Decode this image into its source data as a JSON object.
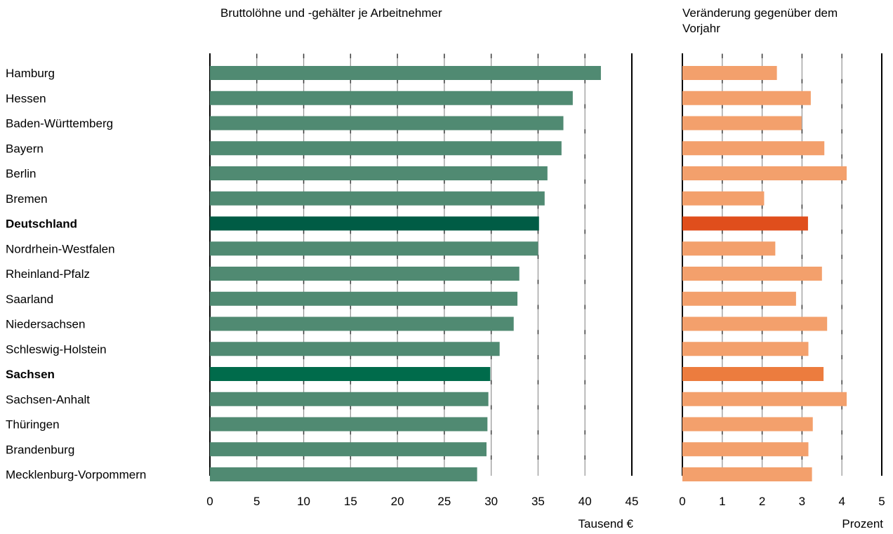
{
  "chart_data": [
    {
      "type": "bar",
      "orientation": "horizontal",
      "title": "Bruttolöhne und -gehälter je Arbeitnehmer",
      "unit_label": "Tausend €",
      "xlim": [
        0,
        45
      ],
      "ticks": [
        0,
        5,
        10,
        15,
        20,
        25,
        30,
        35,
        40,
        45
      ],
      "grid": true,
      "categories": [
        "Hamburg",
        "Hessen",
        "Baden-Württemberg",
        "Bayern",
        "Berlin",
        "Bremen",
        "Deutschland",
        "Nordrhein-Westfalen",
        "Rheinland-Pfalz",
        "Saarland",
        "Niedersachsen",
        "Schleswig-Holstein",
        "Sachsen",
        "Sachsen-Anhalt",
        "Thüringen",
        "Brandenburg",
        "Mecklenburg-Vorpommern"
      ],
      "values": [
        41.7,
        38.7,
        37.7,
        37.5,
        36.0,
        35.7,
        35.1,
        35.0,
        33.0,
        32.8,
        32.4,
        30.9,
        29.9,
        29.7,
        29.6,
        29.5,
        28.5
      ],
      "colors": {
        "default": "#508a72",
        "Deutschland": "#005c45",
        "Sachsen": "#006b4b"
      },
      "bold_categories": [
        "Deutschland",
        "Sachsen"
      ]
    },
    {
      "type": "bar",
      "orientation": "horizontal",
      "title": "Veränderung gegenüber dem Vorjahr",
      "unit_label": "Prozent",
      "xlim": [
        0,
        5
      ],
      "ticks": [
        0,
        1,
        2,
        3,
        4,
        5
      ],
      "grid": true,
      "categories": [
        "Hamburg",
        "Hessen",
        "Baden-Württemberg",
        "Bayern",
        "Berlin",
        "Bremen",
        "Deutschland",
        "Nordrhein-Westfalen",
        "Rheinland-Pfalz",
        "Saarland",
        "Niedersachsen",
        "Schleswig-Holstein",
        "Sachsen",
        "Sachsen-Anhalt",
        "Thüringen",
        "Brandenburg",
        "Mecklenburg-Vorpommern"
      ],
      "values": [
        2.37,
        3.22,
        2.99,
        3.56,
        4.12,
        2.05,
        3.15,
        2.33,
        3.5,
        2.85,
        3.63,
        3.16,
        3.54,
        4.12,
        3.27,
        3.16,
        3.25
      ],
      "colors": {
        "default": "#f3a06c",
        "Deutschland": "#e04e1c",
        "Sachsen": "#ec7c3e"
      },
      "bold_categories": [
        "Deutschland",
        "Sachsen"
      ]
    }
  ]
}
